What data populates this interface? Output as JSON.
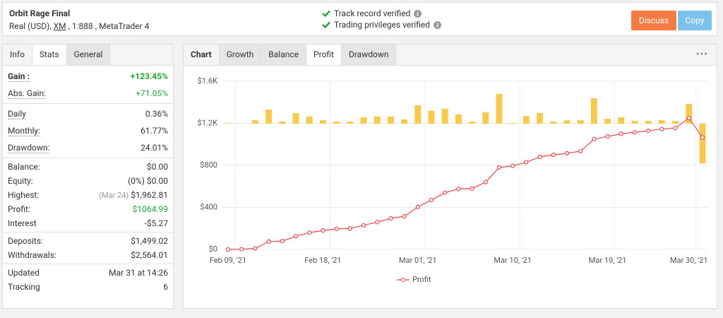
{
  "header": {
    "title": "Orbit Rage Final",
    "subtitle": [
      "Real (USD), ",
      "XM",
      " , 1:888 , MetaTrader 4"
    ],
    "verifications": [
      "Track record verified",
      "Trading privileges verified"
    ],
    "buttons": [
      {
        "label": "Discuss",
        "color": "#f47b44"
      },
      {
        "label": "Copy",
        "color": "#7cc1ec"
      }
    ]
  },
  "stats_panel": {
    "tabs": [
      "Info",
      "Stats",
      "General"
    ],
    "groups": [
      [
        {
          "label": "Gain :",
          "value": "+123.45%",
          "color": "#22a33a",
          "bold": true
        },
        {
          "label": "Abs. Gain:",
          "value": "+71.05%",
          "color": "#22a33a"
        }
      ],
      [
        {
          "label": "Daily",
          "value": "0.36%"
        },
        {
          "label": "Monthly:",
          "value": "61.77%"
        },
        {
          "label": "Drawdown:",
          "value": "24.01%"
        }
      ],
      [
        {
          "label": "Balance:",
          "value": "$0.00"
        },
        {
          "label": "Equity:",
          "value": "(0%) $0.00"
        },
        {
          "label": "Highest:",
          "note": "(Mar 24)",
          "value": "$1,962.81"
        },
        {
          "label": "Profit:",
          "value": "$1064.99",
          "color": "#22a33a"
        },
        {
          "label": "Interest",
          "value": "-$5.27"
        }
      ],
      [
        {
          "label": "Deposits:",
          "value": "$1,499.02"
        },
        {
          "label": "Withdrawals:",
          "value": "$2,564.01"
        }
      ],
      [
        {
          "label": "Updated",
          "value": "Mar 31 at 14:26"
        },
        {
          "label": "Tracking",
          "value": "6"
        }
      ]
    ]
  },
  "chart_panel": {
    "tabs": [
      "Chart",
      "Growth",
      "Balance",
      "Profit",
      "Drawdown"
    ]
  },
  "chart_data": {
    "type": "bar_line",
    "categories": [
      "Feb 09, '21",
      null,
      null,
      null,
      null,
      null,
      null,
      "Feb 18, '21",
      null,
      null,
      null,
      null,
      null,
      null,
      "Mar 01, '21",
      null,
      null,
      null,
      null,
      null,
      null,
      "Mar 10, '21",
      null,
      null,
      null,
      null,
      null,
      null,
      "Mar 19, '21",
      null,
      null,
      null,
      null,
      null,
      "Mar 30, '21",
      null
    ],
    "series": [
      {
        "name": "Profit",
        "color": "#e5484d",
        "values": [
          0,
          2,
          10,
          75,
          80,
          125,
          160,
          180,
          195,
          200,
          230,
          260,
          295,
          315,
          405,
          470,
          540,
          575,
          580,
          640,
          780,
          795,
          830,
          880,
          900,
          915,
          935,
          1050,
          1075,
          1100,
          1115,
          1130,
          1145,
          1155,
          1250,
          1065
        ]
      }
    ],
    "bars": {
      "color": "#f9c94e",
      "axis": "y2",
      "values": [
        3,
        0,
        16,
        66,
        10,
        50,
        33,
        16,
        10,
        10,
        30,
        33,
        33,
        20,
        86,
        60,
        70,
        43,
        10,
        53,
        139,
        3,
        36,
        50,
        10,
        16,
        16,
        119,
        23,
        30,
        13,
        13,
        16,
        13,
        92,
        -185
      ]
    },
    "ylim": [
      0,
      1600
    ],
    "yticks": [
      {
        "value": 0,
        "label": "$0"
      },
      {
        "value": 400,
        "label": "$400"
      },
      {
        "value": 800,
        "label": "$800"
      },
      {
        "value": 1200,
        "label": "$1.2K"
      },
      {
        "value": 1600,
        "label": "$1.6K"
      }
    ],
    "y2lim": [
      -587,
      198
    ],
    "grid": true,
    "legend": "bottom"
  }
}
